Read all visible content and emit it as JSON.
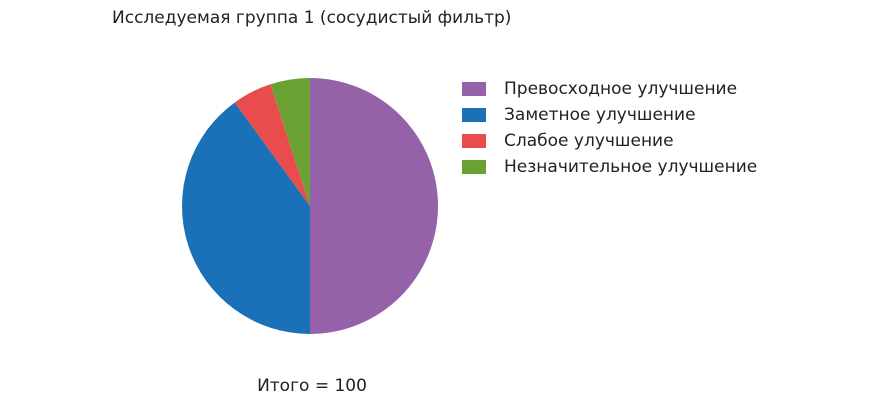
{
  "chart_data": {
    "type": "pie",
    "title": "Исследуемая группа 1 (сосудистый фильтр)",
    "categories": [
      "Превосходное улучшение",
      "Заметное улучшение",
      "Слабое улучшение",
      "Незначительное улучшение"
    ],
    "values": [
      50,
      40,
      5,
      5
    ],
    "colors": [
      "#9561a8",
      "#1a71b8",
      "#e84c4c",
      "#6aa132"
    ],
    "annotation": "Итого = 100",
    "legend": "right"
  }
}
